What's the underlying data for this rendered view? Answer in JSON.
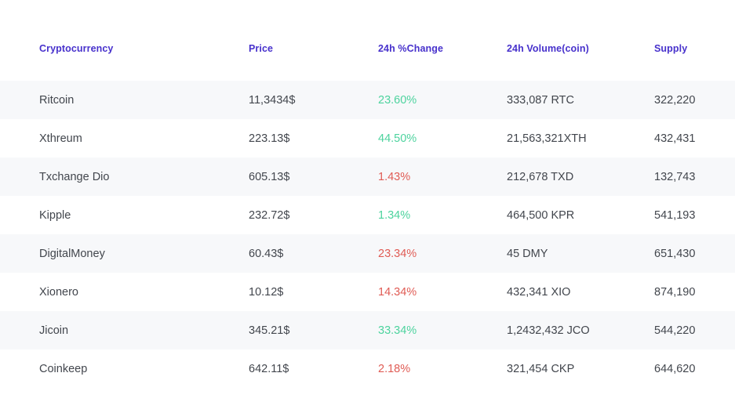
{
  "table": {
    "columns": [
      {
        "key": "name",
        "label": "Cryptocurrency"
      },
      {
        "key": "price",
        "label": "Price"
      },
      {
        "key": "change",
        "label": "24h %Change"
      },
      {
        "key": "volume",
        "label": "24h Volume(coin)"
      },
      {
        "key": "supply",
        "label": "Supply"
      }
    ],
    "rows": [
      {
        "name": "Ritcoin",
        "price": "11,3434$",
        "change": "23.60%",
        "change_dir": "up",
        "volume": "333,087 RTC",
        "supply": "322,220"
      },
      {
        "name": "Xthreum",
        "price": "223.13$",
        "change": "44.50%",
        "change_dir": "up",
        "volume": "21,563,321XTH",
        "supply": "432,431"
      },
      {
        "name": "Txchange Dio",
        "price": "605.13$",
        "change": "1.43%",
        "change_dir": "down",
        "volume": "212,678 TXD",
        "supply": "132,743"
      },
      {
        "name": "Kipple",
        "price": "232.72$",
        "change": "1.34%",
        "change_dir": "up",
        "volume": "464,500 KPR",
        "supply": "541,193"
      },
      {
        "name": "DigitalMoney",
        "price": "60.43$",
        "change": "23.34%",
        "change_dir": "down",
        "volume": "45 DMY",
        "supply": "651,430"
      },
      {
        "name": "Xionero",
        "price": "10.12$",
        "change": "14.34%",
        "change_dir": "down",
        "volume": "432,341 XIO",
        "supply": "874,190"
      },
      {
        "name": "Jicoin",
        "price": "345.21$",
        "change": "33.34%",
        "change_dir": "up",
        "volume": "1,2432,432 JCO",
        "supply": "544,220"
      },
      {
        "name": "Coinkeep",
        "price": "642.11$",
        "change": "2.18%",
        "change_dir": "down",
        "volume": "321,454 CKP",
        "supply": "644,620"
      }
    ]
  },
  "colors": {
    "header_text": "#4731cc",
    "body_text": "#42464d",
    "positive": "#4dd39e",
    "negative": "#e05c55",
    "row_stripe": "#f7f8fa",
    "background": "#ffffff"
  }
}
